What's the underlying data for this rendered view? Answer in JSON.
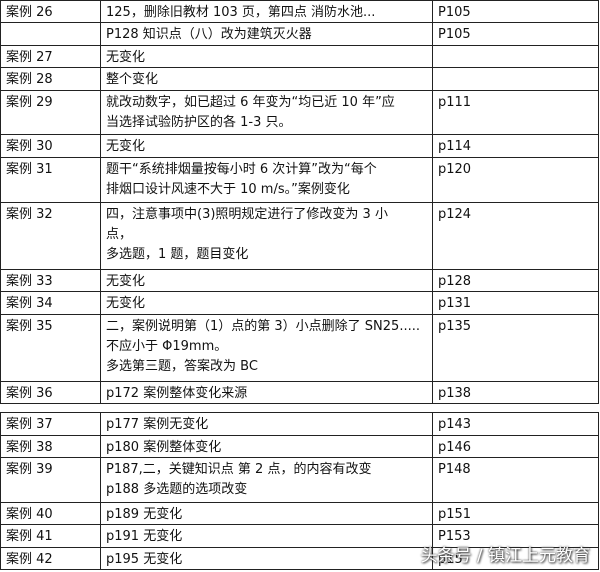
{
  "tables": [
    {
      "rows": [
        {
          "case": "案例 26",
          "content": [
            "125，删除旧教材 103 页，第四点 消防水池..."
          ],
          "page": "P105"
        },
        {
          "content": [
            "P128 知识点（八）改为建筑灭火器"
          ],
          "page": "P105"
        },
        {
          "case": "案例 27",
          "content": [
            "无变化"
          ]
        },
        {
          "case": "案例 28",
          "content": [
            "整个变化"
          ]
        },
        {
          "case": "案例 29",
          "content": [
            "就改动数字，如已超过 6 年变为“均已近 10 年”应",
            "当选择试验防护区的各 1-3 只。"
          ],
          "page": "p111"
        },
        {
          "case": "案例 30",
          "content": [
            "无变化"
          ],
          "page": "p114"
        },
        {
          "case": "案例 31",
          "content": [
            "题干“系统排烟量按每小时 6 次计算”改为“每个",
            "排烟口设计风速不大于 10 m/s。”案例变化"
          ],
          "page": "p120"
        },
        {
          "case": "案例 32",
          "content": [
            "四，注意事项中(3)照明规定进行了修改变为 3 小",
            "点，",
            "多选题，1 题，题目变化"
          ],
          "page": "p124"
        },
        {
          "case": "案例 33",
          "content": [
            "无变化"
          ],
          "page": "p128"
        },
        {
          "case": "案例 34",
          "content": [
            "无变化"
          ],
          "page": "p131"
        },
        {
          "case": "案例 35",
          "content": [
            "二，案例说明第（1）点的第 3）小点删除了 SN25.....",
            "不应小于 Φ19mm。",
            "多选第三题，答案改为 BC"
          ],
          "page": "p135"
        },
        {
          "case": "案例 36",
          "content": [
            "p172 案例整体变化来源"
          ],
          "page": "p138"
        }
      ]
    },
    {
      "rows": [
        {
          "case": "案例 37",
          "content": [
            "p177 案例无变化"
          ],
          "page": "p143"
        },
        {
          "case": "案例 38",
          "content": [
            "p180 案例整体变化"
          ],
          "page": "p146"
        },
        {
          "case": "案例 39",
          "content": [
            "P187,二，关键知识点 第 2 点，的内容有改变",
            "p188 多选题的选项改变"
          ],
          "page": "P148"
        },
        {
          "case": "案例 40",
          "content": [
            "p189 无变化"
          ],
          "page": "p151"
        },
        {
          "case": "案例 41",
          "content": [
            "p191 无变化"
          ],
          "page": "P153"
        },
        {
          "case": "案例 42",
          "content": [
            "p195 无变化"
          ],
          "page": "p15"
        }
      ]
    }
  ],
  "watermark": "头条号 / 镇江上元教育"
}
